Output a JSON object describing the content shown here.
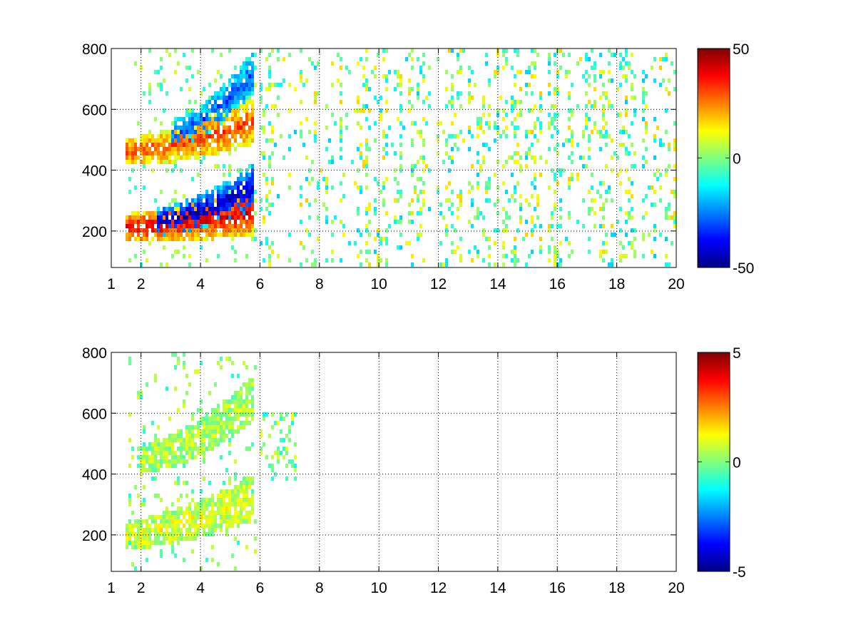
{
  "chart_data": [
    {
      "type": "heatmap",
      "title": "",
      "xlabel": "",
      "ylabel": "",
      "xlim": [
        1,
        20
      ],
      "ylim": [
        80,
        800
      ],
      "xticks": [
        1,
        2,
        4,
        6,
        8,
        10,
        12,
        14,
        16,
        18,
        20
      ],
      "xtick_labels": [
        "1",
        "2",
        "4",
        "6",
        "8",
        "10",
        "12",
        "14",
        "16",
        "18",
        "20"
      ],
      "yticks": [
        200,
        400,
        600,
        800
      ],
      "ytick_labels": [
        "200",
        "400",
        "600",
        "800"
      ],
      "grid": true,
      "grid_style": "dotted",
      "colormap": "jet",
      "clim": [
        -50,
        50
      ],
      "colorbar_ticks": [
        50,
        0,
        -50
      ],
      "colorbar_labels": [
        "50",
        "0",
        "-50"
      ],
      "features": [
        {
          "kind": "curved_band",
          "x_range": [
            1.5,
            5.8
          ],
          "y_start": 210,
          "y_end": 260,
          "value": 40
        },
        {
          "kind": "curved_band",
          "x_range": [
            2.5,
            5.8
          ],
          "y_start": 230,
          "y_end": 340,
          "value": -45
        },
        {
          "kind": "curved_band",
          "x_range": [
            1.5,
            5.8
          ],
          "y_start": 460,
          "y_end": 560,
          "value": 30
        },
        {
          "kind": "curved_band",
          "x_range": [
            3.0,
            5.8
          ],
          "y_start": 520,
          "y_end": 720,
          "value": -30
        },
        {
          "kind": "scatter_columns",
          "x_range": [
            6,
            20
          ],
          "y_range": [
            80,
            800
          ],
          "value": 0
        }
      ]
    },
    {
      "type": "heatmap",
      "title": "",
      "xlabel": "",
      "ylabel": "",
      "xlim": [
        1,
        20
      ],
      "ylim": [
        80,
        800
      ],
      "xticks": [
        1,
        2,
        4,
        6,
        8,
        10,
        12,
        14,
        16,
        18,
        20
      ],
      "xtick_labels": [
        "1",
        "2",
        "4",
        "6",
        "8",
        "10",
        "12",
        "14",
        "16",
        "18",
        "20"
      ],
      "yticks": [
        200,
        400,
        600,
        800
      ],
      "ytick_labels": [
        "200",
        "400",
        "600",
        "800"
      ],
      "grid": true,
      "grid_style": "dotted",
      "colormap": "jet",
      "clim": [
        -5,
        5
      ],
      "colorbar_ticks": [
        5,
        0,
        -5
      ],
      "colorbar_labels": [
        "5",
        "0",
        "-5"
      ],
      "features": [
        {
          "kind": "curved_band",
          "x_range": [
            1.5,
            5.8
          ],
          "y_start": 200,
          "y_end": 320,
          "value": 1
        },
        {
          "kind": "curved_band",
          "x_range": [
            2.0,
            5.8
          ],
          "y_start": 450,
          "y_end": 650,
          "value": 0.5
        },
        {
          "kind": "sparse_points",
          "x_range": [
            6,
            7.2
          ],
          "y_range": [
            380,
            600
          ],
          "value": 0
        }
      ]
    }
  ]
}
